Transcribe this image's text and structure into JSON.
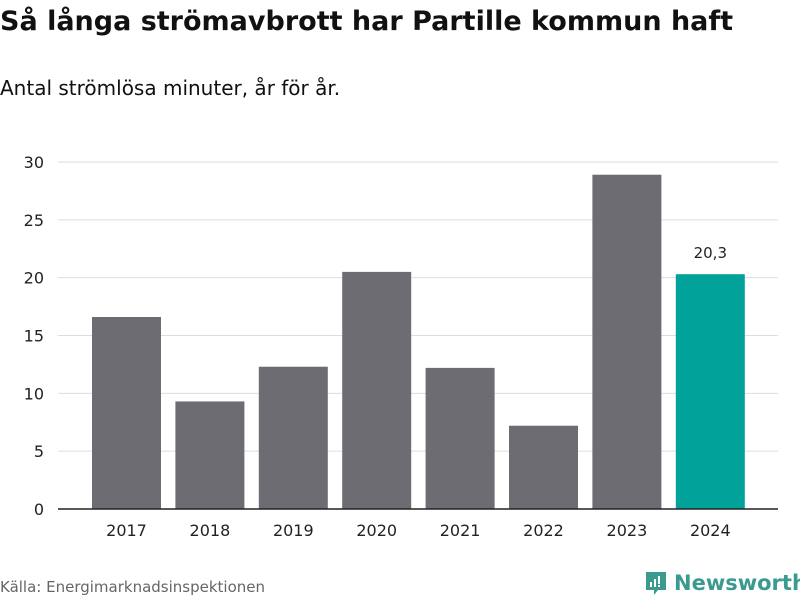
{
  "chart_data": {
    "type": "bar",
    "title": "Så långa strömavbrott har Partille kommun haft",
    "subtitle": "Antal strömlösa minuter, år för år.",
    "categories": [
      "2017",
      "2018",
      "2019",
      "2020",
      "2021",
      "2022",
      "2023",
      "2024"
    ],
    "values": [
      16.6,
      9.3,
      12.3,
      20.5,
      12.2,
      7.2,
      28.9,
      20.3
    ],
    "ylim": [
      0,
      30
    ],
    "yticks": [
      "0",
      "5",
      "10",
      "15",
      "20",
      "25",
      "30"
    ],
    "grid": true,
    "highlight_index": 7,
    "highlight_label": "20,3",
    "colors": {
      "bar": "#6d6c72",
      "highlight": "#00a29a"
    }
  },
  "source": "Källa: Energimarknadsinspektionen",
  "brand": "Newsworthy"
}
